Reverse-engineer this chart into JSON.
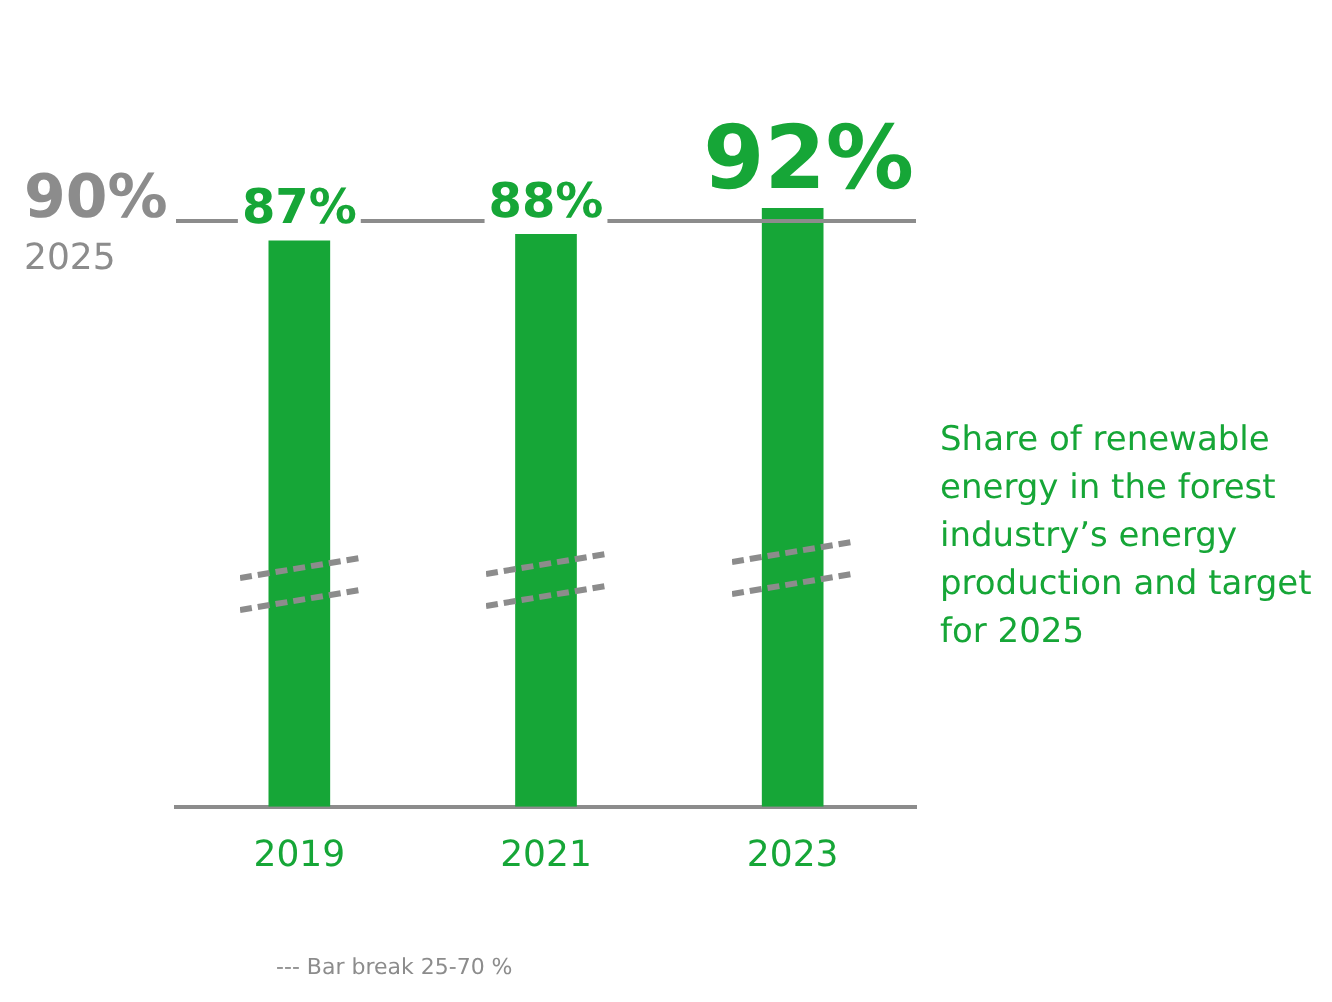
{
  "chart_data": {
    "type": "bar",
    "title": "Share of renewable energy in the forest industry’s energy production and target for 2025",
    "categories": [
      "2019",
      "2021",
      "2023"
    ],
    "values": [
      87,
      88,
      92
    ],
    "color": "#16a637",
    "value_labels": [
      "87%",
      "88%",
      "92%"
    ],
    "ref_lines": [
      {
        "axis": "y",
        "value": 90,
        "label": "90% 2025",
        "color": "#8c8c8c"
      }
    ],
    "annotations": [
      "--- Bar break 25-70 %"
    ],
    "grid": false,
    "legend": false
  }
}
